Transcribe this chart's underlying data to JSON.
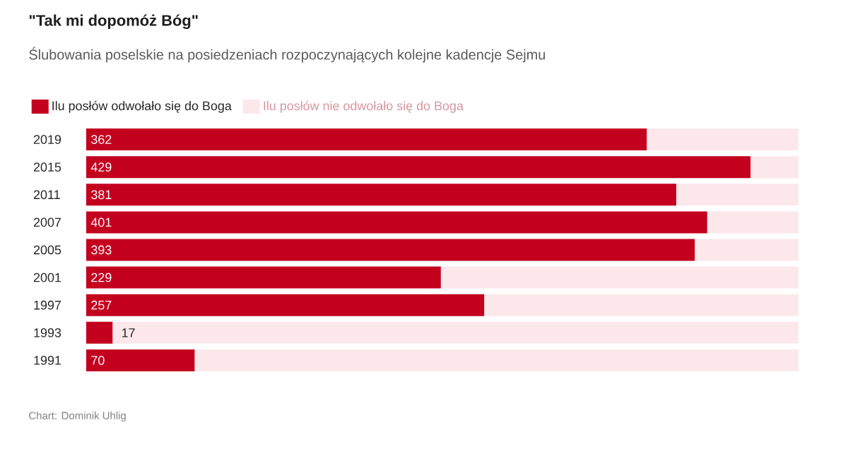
{
  "chart_data": {
    "type": "bar",
    "orientation": "horizontal",
    "stacked": true,
    "title": "\"Tak mi dopomóż Bóg\"",
    "subtitle": "Ślubowania poselskie na posiedzeniach rozpoczynających kolejne kadencje Sejmu",
    "categories": [
      "2019",
      "2015",
      "2011",
      "2007",
      "2005",
      "2001",
      "1997",
      "1993",
      "1991"
    ],
    "series": [
      {
        "name": "Ilu posłów odwołało się do Boga",
        "color": "#c4001f",
        "values": [
          362,
          429,
          381,
          401,
          393,
          229,
          257,
          17,
          70
        ],
        "value_labels": [
          "362",
          "429",
          "381",
          "401",
          "393",
          "229",
          "257",
          "17",
          "70"
        ]
      },
      {
        "name": "Ilu posłów nie odwołało się do Boga",
        "color": "#fce8ea",
        "values": [
          98,
          31,
          79,
          59,
          67,
          231,
          203,
          443,
          390
        ]
      }
    ],
    "xlim": [
      0,
      460
    ],
    "legend": "top left",
    "annotations": [
      "Chart: Dominik Uhlig"
    ]
  }
}
